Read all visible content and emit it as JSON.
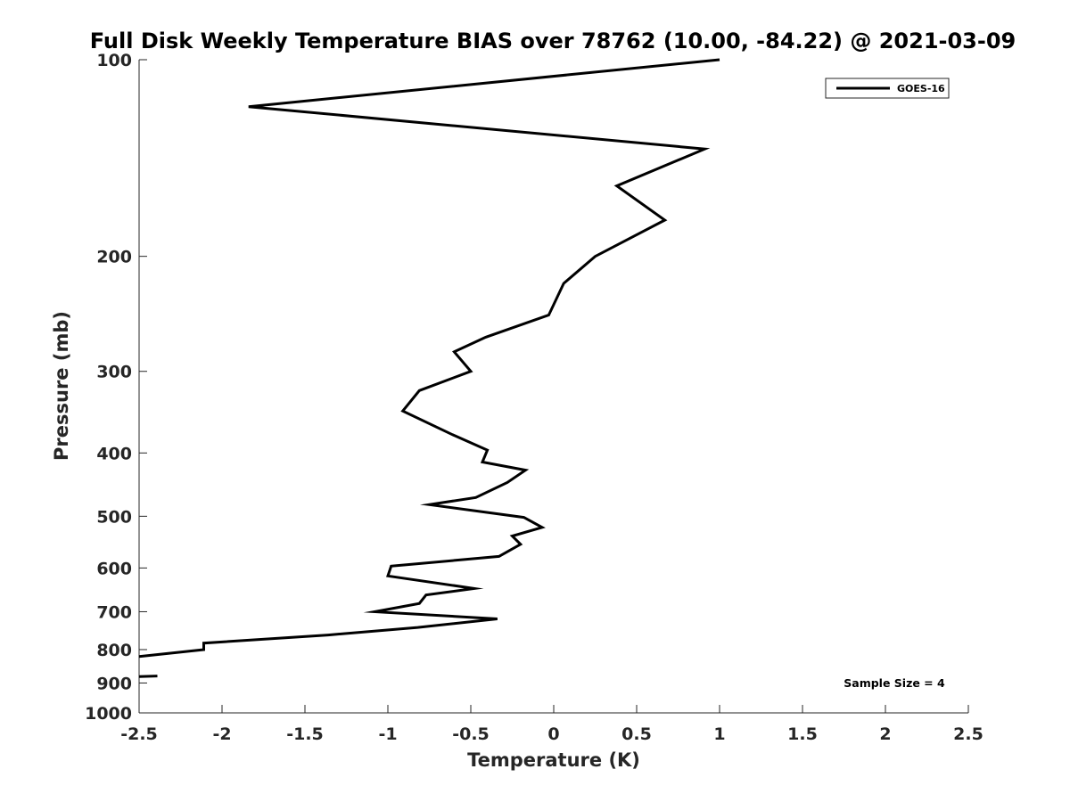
{
  "chart_data": {
    "type": "line",
    "title": "Full Disk Weekly Temperature BIAS over 78762 (10.00, -84.22) @ 2021-03-09",
    "xlabel": "Temperature (K)",
    "ylabel": "Pressure (mb)",
    "xlim": [
      -2.5,
      2.5
    ],
    "ylim": [
      100,
      1000
    ],
    "y_scale": "log",
    "y_reversed": true,
    "x_ticks": [
      -2.5,
      -2,
      -1.5,
      -1,
      -0.5,
      0,
      0.5,
      1,
      1.5,
      2,
      2.5
    ],
    "x_tick_labels": [
      "-2.5",
      "-2",
      "-1.5",
      "-1",
      "-0.5",
      "0",
      "0.5",
      "1",
      "1.5",
      "2",
      "2.5"
    ],
    "y_ticks": [
      100,
      200,
      300,
      400,
      500,
      600,
      700,
      800,
      900,
      1000
    ],
    "y_tick_labels": [
      "100",
      "200",
      "300",
      "400",
      "500",
      "600",
      "700",
      "800",
      "900",
      "1000"
    ],
    "grid": false,
    "legend_position": "top-right",
    "annotation": "Sample Size = 4",
    "series": [
      {
        "name": "GOES-16",
        "color": "#000000",
        "x": [
          1.0,
          -1.84,
          0.91,
          0.38,
          0.67,
          0.25,
          0.06,
          -0.03,
          -0.41,
          -0.6,
          -0.5,
          -0.81,
          -0.91,
          -0.61,
          -0.4,
          -0.43,
          -0.17,
          -0.28,
          -0.47,
          -0.75,
          -0.18,
          -0.07,
          -0.25,
          -0.2,
          -0.33,
          -0.98,
          -1.0,
          -0.48,
          -0.77,
          -0.81,
          -1.08,
          -0.34,
          -0.82,
          -1.36,
          -2.11,
          -2.11,
          -2.5
        ],
        "y": [
          100,
          118,
          137,
          156,
          176,
          200,
          220,
          246,
          266,
          280,
          300,
          321,
          345,
          375,
          396,
          413,
          425,
          444,
          468,
          480,
          502,
          520,
          536,
          552,
          576,
          596,
          617,
          645,
          660,
          680,
          700,
          718,
          740,
          760,
          782,
          800,
          820
        ]
      },
      {
        "name": "",
        "color": "#000000",
        "x": [
          -2.5,
          -2.39
        ],
        "y": [
          880,
          878
        ]
      }
    ]
  }
}
